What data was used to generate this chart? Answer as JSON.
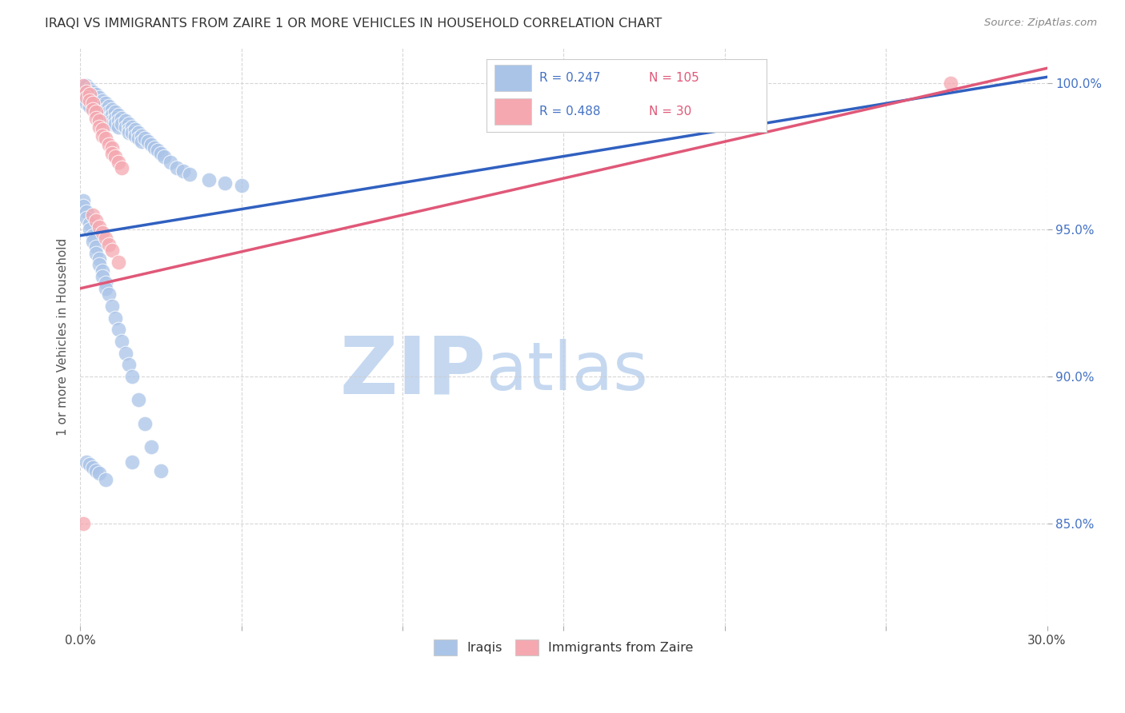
{
  "title": "IRAQI VS IMMIGRANTS FROM ZAIRE 1 OR MORE VEHICLES IN HOUSEHOLD CORRELATION CHART",
  "source": "Source: ZipAtlas.com",
  "ylabel": "1 or more Vehicles in Household",
  "ytick_labels": [
    "85.0%",
    "90.0%",
    "95.0%",
    "100.0%"
  ],
  "ytick_values": [
    0.85,
    0.9,
    0.95,
    1.0
  ],
  "xmin": 0.0,
  "xmax": 0.3,
  "ymin": 0.815,
  "ymax": 1.012,
  "legend_blue_R": "0.247",
  "legend_blue_N": "105",
  "legend_pink_R": "0.488",
  "legend_pink_N": "30",
  "blue_color": "#aac4e8",
  "pink_color": "#f5a8b0",
  "line_blue": "#3060c0",
  "line_pink": "#e05878",
  "watermark_zip": "ZIP",
  "watermark_atlas": "atlas",
  "watermark_color": "#ccdff5",
  "blue_line_x0": 0.0,
  "blue_line_y0": 0.948,
  "blue_line_x1": 0.3,
  "blue_line_y1": 1.002,
  "pink_line_x0": 0.0,
  "pink_line_y0": 0.93,
  "pink_line_x1": 0.3,
  "pink_line_y1": 1.005,
  "blue_x": [
    0.001,
    0.001,
    0.001,
    0.002,
    0.002,
    0.002,
    0.002,
    0.003,
    0.003,
    0.003,
    0.003,
    0.004,
    0.004,
    0.004,
    0.005,
    0.005,
    0.005,
    0.006,
    0.006,
    0.006,
    0.006,
    0.007,
    0.007,
    0.007,
    0.007,
    0.008,
    0.008,
    0.008,
    0.009,
    0.009,
    0.009,
    0.01,
    0.01,
    0.01,
    0.01,
    0.011,
    0.011,
    0.011,
    0.012,
    0.012,
    0.012,
    0.013,
    0.013,
    0.014,
    0.014,
    0.015,
    0.015,
    0.015,
    0.016,
    0.016,
    0.017,
    0.017,
    0.018,
    0.018,
    0.019,
    0.019,
    0.02,
    0.021,
    0.022,
    0.023,
    0.024,
    0.025,
    0.026,
    0.028,
    0.03,
    0.032,
    0.034,
    0.04,
    0.045,
    0.05,
    0.001,
    0.001,
    0.002,
    0.002,
    0.003,
    0.003,
    0.004,
    0.004,
    0.005,
    0.005,
    0.006,
    0.006,
    0.007,
    0.007,
    0.008,
    0.008,
    0.009,
    0.01,
    0.011,
    0.012,
    0.013,
    0.014,
    0.015,
    0.016,
    0.018,
    0.02,
    0.022,
    0.025,
    0.016,
    0.002,
    0.003,
    0.004,
    0.005,
    0.006,
    0.008
  ],
  "blue_y": [
    0.999,
    0.997,
    0.995,
    0.999,
    0.997,
    0.995,
    0.993,
    0.998,
    0.996,
    0.994,
    0.992,
    0.997,
    0.995,
    0.993,
    0.996,
    0.994,
    0.992,
    0.995,
    0.993,
    0.991,
    0.99,
    0.994,
    0.992,
    0.99,
    0.988,
    0.993,
    0.991,
    0.989,
    0.992,
    0.99,
    0.988,
    0.991,
    0.989,
    0.987,
    0.986,
    0.99,
    0.988,
    0.986,
    0.989,
    0.987,
    0.985,
    0.988,
    0.986,
    0.987,
    0.985,
    0.986,
    0.984,
    0.983,
    0.985,
    0.983,
    0.984,
    0.982,
    0.983,
    0.981,
    0.982,
    0.98,
    0.981,
    0.98,
    0.979,
    0.978,
    0.977,
    0.976,
    0.975,
    0.973,
    0.971,
    0.97,
    0.969,
    0.967,
    0.966,
    0.965,
    0.96,
    0.958,
    0.956,
    0.954,
    0.952,
    0.95,
    0.948,
    0.946,
    0.944,
    0.942,
    0.94,
    0.938,
    0.936,
    0.934,
    0.932,
    0.93,
    0.928,
    0.924,
    0.92,
    0.916,
    0.912,
    0.908,
    0.904,
    0.9,
    0.892,
    0.884,
    0.876,
    0.868,
    0.871,
    0.871,
    0.87,
    0.869,
    0.868,
    0.867,
    0.865
  ],
  "pink_x": [
    0.001,
    0.002,
    0.002,
    0.003,
    0.003,
    0.004,
    0.004,
    0.005,
    0.005,
    0.006,
    0.006,
    0.007,
    0.007,
    0.008,
    0.009,
    0.01,
    0.01,
    0.011,
    0.012,
    0.013,
    0.004,
    0.005,
    0.006,
    0.007,
    0.008,
    0.009,
    0.01,
    0.012,
    0.27,
    0.001
  ],
  "pink_y": [
    0.999,
    0.997,
    0.995,
    0.996,
    0.994,
    0.993,
    0.991,
    0.99,
    0.988,
    0.987,
    0.985,
    0.984,
    0.982,
    0.981,
    0.979,
    0.978,
    0.976,
    0.975,
    0.973,
    0.971,
    0.955,
    0.953,
    0.951,
    0.949,
    0.947,
    0.945,
    0.943,
    0.939,
    1.0,
    0.85
  ]
}
